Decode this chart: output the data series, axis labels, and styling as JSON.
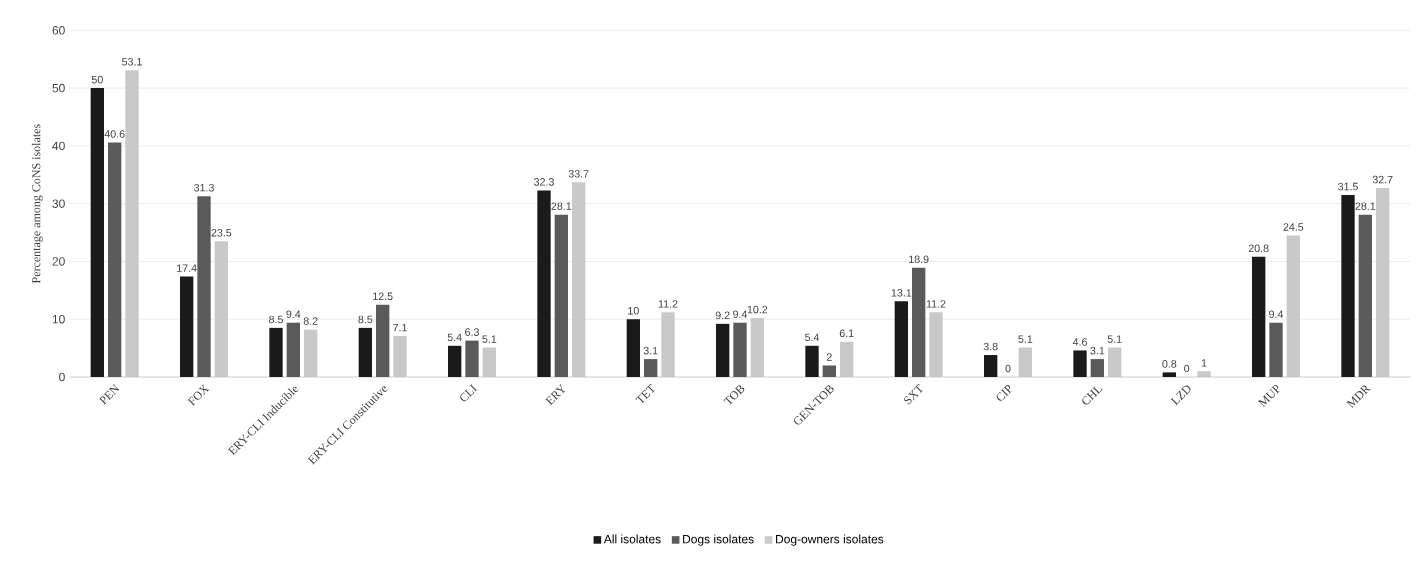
{
  "chart_data": {
    "type": "bar",
    "ylabel": "Percentage among CoNS isolates",
    "categories": [
      "PEN",
      "FOX",
      "ERY-CLI Inducible",
      "ERY-CLI Constitutive",
      "CLI",
      "ERY",
      "TET",
      "TOB",
      "GEN-TOB",
      "SXT",
      "CIP",
      "CHL",
      "LZD",
      "MUP",
      "MDR"
    ],
    "series": [
      {
        "name": "All isolates",
        "color": "#1a1a1a",
        "values": [
          50,
          17.4,
          8.5,
          8.5,
          5.4,
          32.3,
          10,
          9.2,
          5.4,
          13.1,
          3.8,
          4.6,
          0.8,
          20.8,
          31.5
        ]
      },
      {
        "name": "Dogs isolates",
        "color": "#5a5a5a",
        "values": [
          40.6,
          31.3,
          9.4,
          12.5,
          6.3,
          28.1,
          3.1,
          9.4,
          2,
          18.9,
          0,
          3.1,
          0,
          9.4,
          28.1
        ]
      },
      {
        "name": "Dog-owners isolates",
        "color": "#c9c9c9",
        "values": [
          53.1,
          23.5,
          8.2,
          7.1,
          5.1,
          33.7,
          11.2,
          10.2,
          6.1,
          11.2,
          5.1,
          5.1,
          1,
          24.5,
          32.7
        ]
      }
    ],
    "ylim": [
      0,
      60
    ],
    "yticks": [
      0,
      10,
      20,
      30,
      40,
      50,
      60
    ],
    "grid": "y",
    "legend": "bottom",
    "data_labels": true
  }
}
